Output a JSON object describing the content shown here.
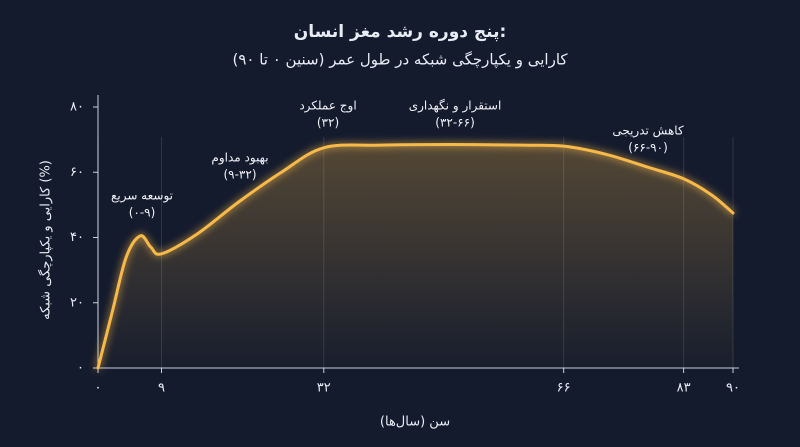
{
  "chart_data": {
    "type": "line",
    "title": "پنج دوره رشد مغز انسان:",
    "subtitle": "کارایی و یکپارچگی شبکه در طول عمر (سنین ۰ تا ۹۰)",
    "x_label": "سن (سال‌ها)",
    "y_label": "کارایی و یکپارچگی شبکه (%)",
    "x": [
      0,
      2,
      4,
      6,
      7.5,
      9,
      14,
      20,
      26,
      32,
      40,
      50,
      60,
      66,
      72,
      78,
      83,
      87,
      90
    ],
    "series": [
      {
        "color": "#f7b94a",
        "values": [
          0,
          17,
          34,
          40.5,
          37,
          35,
          41,
          51,
          60,
          67.5,
          68.3,
          68.5,
          68.3,
          68,
          65.5,
          61.5,
          58,
          53,
          47.5
        ]
      }
    ],
    "xlim": [
      0,
      90
    ],
    "xticks": [
      {
        "value": 0,
        "label": "۰"
      },
      {
        "value": 9,
        "label": "۹"
      },
      {
        "value": 32,
        "label": "۳۲"
      },
      {
        "value": 66,
        "label": "۶۶"
      },
      {
        "value": 83,
        "label": "۸۳"
      },
      {
        "value": 90,
        "label": "۹۰"
      }
    ],
    "ylim": [
      0,
      80
    ],
    "yticks": [
      {
        "value": 0,
        "label": "۰"
      },
      {
        "value": 20,
        "label": "۲۰"
      },
      {
        "value": 40,
        "label": "۴۰"
      },
      {
        "value": 60,
        "label": "۶۰"
      },
      {
        "value": 80,
        "label": "۸۰"
      }
    ],
    "grid": true,
    "annotations": [
      {
        "label": "توسعه سریع",
        "period": "(۰-۹)"
      },
      {
        "label": "بهبود مداوم",
        "period": "(۹-۳۲)"
      },
      {
        "label": "اوج عملکرد",
        "period": "(۳۲)"
      },
      {
        "label": "استقرار و نگهداری",
        "period": "(۳۲-۶۶)"
      },
      {
        "label": "کاهش تدریجی",
        "period": "(۶۶-۹۰)"
      }
    ]
  }
}
